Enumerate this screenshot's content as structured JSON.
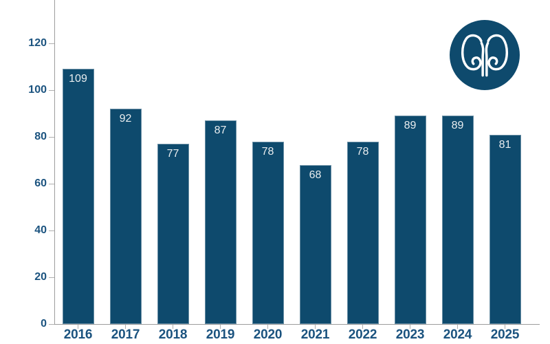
{
  "chart_data": {
    "type": "bar",
    "title": "",
    "xlabel": "",
    "ylabel": "",
    "categories": [
      "2016",
      "2017",
      "2018",
      "2019",
      "2020",
      "2021",
      "2022",
      "2023",
      "2024",
      "2025"
    ],
    "values": [
      109,
      92,
      77,
      87,
      78,
      68,
      78,
      89,
      89,
      81
    ],
    "bar_value_labels": [
      "109",
      "92",
      "77",
      "87",
      "78",
      "68",
      "78",
      "89",
      "89",
      "81"
    ],
    "yticks": [
      0,
      20,
      40,
      60,
      80,
      100,
      120
    ],
    "ylim": [
      0,
      138
    ],
    "grid": false,
    "legend": "none"
  },
  "icon": {
    "name": "kidneys-icon",
    "shape": "circle-badge"
  },
  "colors": {
    "bar_fill": "#0e4a6d",
    "axis_label_text": "#1b537f",
    "bar_value_text": "#e9edef",
    "axis_line": "#9c9c9c",
    "tick": "#aeaeae",
    "icon_background": "#0e4a6d",
    "icon_stroke": "#ffffff",
    "page_background": "#ffffff"
  }
}
